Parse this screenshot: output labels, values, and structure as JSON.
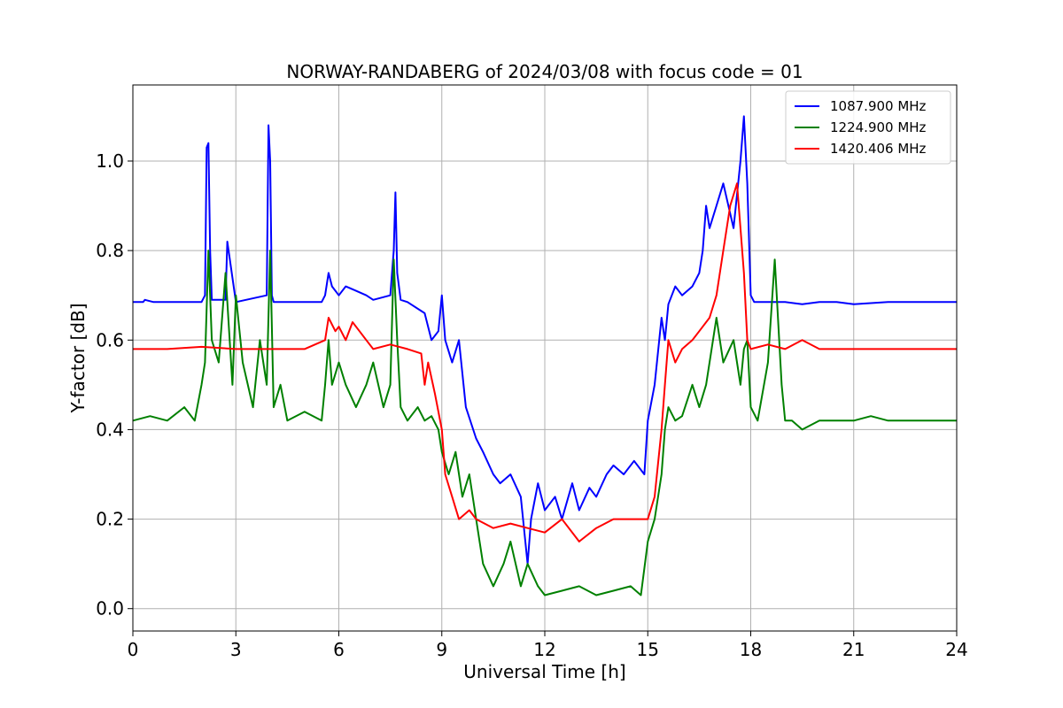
{
  "chart_data": {
    "type": "line",
    "title": "NORWAY-RANDABERG of 2024/03/08 with focus code = 01",
    "xlabel": "Universal Time [h]",
    "ylabel": "Y-factor [dB]",
    "xlim": [
      0,
      24
    ],
    "ylim": [
      -0.05,
      1.17
    ],
    "xticks": [
      0,
      3,
      6,
      9,
      12,
      15,
      18,
      21,
      24
    ],
    "xtick_labels": [
      "0",
      "3",
      "6",
      "9",
      "12",
      "15",
      "18",
      "21",
      "24"
    ],
    "yticks": [
      0.0,
      0.2,
      0.4,
      0.6,
      0.8,
      1.0
    ],
    "ytick_labels": [
      "0.0",
      "0.2",
      "0.4",
      "0.6",
      "0.8",
      "1.0"
    ],
    "grid": true,
    "legend_position": "top-right",
    "series": [
      {
        "name": "1087.900 MHz",
        "color": "#0000ff",
        "x": [
          0,
          0.3,
          0.35,
          0.6,
          1.0,
          2.0,
          2.1,
          2.15,
          2.2,
          2.25,
          2.3,
          2.7,
          2.75,
          3.0,
          3.9,
          3.95,
          4.0,
          4.05,
          4.1,
          5.5,
          5.6,
          5.7,
          5.8,
          6.0,
          6.2,
          6.5,
          6.8,
          7.0,
          7.5,
          7.6,
          7.65,
          7.7,
          7.8,
          8.0,
          8.5,
          8.7,
          8.9,
          9.0,
          9.1,
          9.3,
          9.5,
          9.7,
          10.0,
          10.2,
          10.5,
          10.7,
          11.0,
          11.3,
          11.5,
          11.6,
          11.8,
          12.0,
          12.3,
          12.5,
          12.8,
          13.0,
          13.3,
          13.5,
          13.8,
          14.0,
          14.3,
          14.6,
          14.9,
          15.0,
          15.2,
          15.4,
          15.5,
          15.6,
          15.7,
          15.8,
          16.0,
          16.3,
          16.5,
          16.6,
          16.7,
          16.8,
          17.0,
          17.2,
          17.5,
          17.7,
          17.8,
          17.9,
          18.0,
          18.1,
          18.5,
          19.0,
          19.5,
          20.0,
          20.5,
          21.0,
          22.0,
          23.0,
          24.0
        ],
        "y": [
          0.685,
          0.685,
          0.69,
          0.685,
          0.685,
          0.685,
          0.7,
          1.03,
          1.04,
          0.8,
          0.69,
          0.69,
          0.82,
          0.685,
          0.7,
          1.08,
          1.0,
          0.7,
          0.685,
          0.685,
          0.7,
          0.75,
          0.72,
          0.7,
          0.72,
          0.71,
          0.7,
          0.69,
          0.7,
          0.8,
          0.93,
          0.75,
          0.69,
          0.685,
          0.66,
          0.6,
          0.62,
          0.7,
          0.6,
          0.55,
          0.6,
          0.45,
          0.38,
          0.35,
          0.3,
          0.28,
          0.3,
          0.25,
          0.1,
          0.2,
          0.28,
          0.22,
          0.25,
          0.2,
          0.28,
          0.22,
          0.27,
          0.25,
          0.3,
          0.32,
          0.3,
          0.33,
          0.3,
          0.42,
          0.5,
          0.65,
          0.6,
          0.68,
          0.7,
          0.72,
          0.7,
          0.72,
          0.75,
          0.8,
          0.9,
          0.85,
          0.9,
          0.95,
          0.85,
          1.0,
          1.1,
          0.95,
          0.7,
          0.685,
          0.685,
          0.685,
          0.68,
          0.685,
          0.685,
          0.68,
          0.685,
          0.685,
          0.685
        ]
      },
      {
        "name": "1224.900 MHz",
        "color": "#008000",
        "x": [
          0,
          0.5,
          1.0,
          1.5,
          1.8,
          2.0,
          2.1,
          2.2,
          2.3,
          2.5,
          2.7,
          2.9,
          3.0,
          3.2,
          3.5,
          3.7,
          3.9,
          4.0,
          4.1,
          4.3,
          4.5,
          5.0,
          5.5,
          5.6,
          5.7,
          5.8,
          6.0,
          6.2,
          6.5,
          6.8,
          7.0,
          7.3,
          7.5,
          7.6,
          7.7,
          7.8,
          8.0,
          8.3,
          8.5,
          8.7,
          8.9,
          9.0,
          9.2,
          9.4,
          9.6,
          9.8,
          10.0,
          10.2,
          10.5,
          10.8,
          11.0,
          11.3,
          11.5,
          11.8,
          12.0,
          12.5,
          13.0,
          13.5,
          14.0,
          14.5,
          14.8,
          15.0,
          15.2,
          15.4,
          15.5,
          15.6,
          15.8,
          16.0,
          16.3,
          16.5,
          16.7,
          17.0,
          17.2,
          17.5,
          17.7,
          17.8,
          17.9,
          18.0,
          18.2,
          18.5,
          18.7,
          18.9,
          19.0,
          19.2,
          19.5,
          20.0,
          20.5,
          21.0,
          21.5,
          22.0,
          23.0,
          24.0
        ],
        "y": [
          0.42,
          0.43,
          0.42,
          0.45,
          0.42,
          0.5,
          0.55,
          0.8,
          0.6,
          0.55,
          0.75,
          0.5,
          0.7,
          0.55,
          0.45,
          0.6,
          0.5,
          0.8,
          0.45,
          0.5,
          0.42,
          0.44,
          0.42,
          0.5,
          0.6,
          0.5,
          0.55,
          0.5,
          0.45,
          0.5,
          0.55,
          0.45,
          0.5,
          0.78,
          0.6,
          0.45,
          0.42,
          0.45,
          0.42,
          0.43,
          0.4,
          0.35,
          0.3,
          0.35,
          0.25,
          0.3,
          0.2,
          0.1,
          0.05,
          0.1,
          0.15,
          0.05,
          0.1,
          0.05,
          0.03,
          0.04,
          0.05,
          0.03,
          0.04,
          0.05,
          0.03,
          0.15,
          0.2,
          0.3,
          0.4,
          0.45,
          0.42,
          0.43,
          0.5,
          0.45,
          0.5,
          0.65,
          0.55,
          0.6,
          0.5,
          0.58,
          0.6,
          0.45,
          0.42,
          0.55,
          0.78,
          0.5,
          0.42,
          0.42,
          0.4,
          0.42,
          0.42,
          0.42,
          0.43,
          0.42,
          0.42,
          0.42
        ]
      },
      {
        "name": "1420.406 MHz",
        "color": "#ff0000",
        "x": [
          0,
          1.0,
          2.0,
          3.0,
          4.0,
          5.0,
          5.6,
          5.7,
          5.9,
          6.0,
          6.2,
          6.4,
          6.6,
          6.8,
          7.0,
          7.5,
          8.0,
          8.4,
          8.5,
          8.6,
          8.8,
          9.0,
          9.1,
          9.3,
          9.5,
          9.8,
          10.0,
          10.5,
          11.0,
          11.5,
          12.0,
          12.5,
          13.0,
          13.5,
          14.0,
          14.5,
          15.0,
          15.2,
          15.4,
          15.5,
          15.6,
          15.8,
          16.0,
          16.3,
          16.5,
          16.8,
          17.0,
          17.2,
          17.4,
          17.6,
          17.8,
          17.9,
          18.0,
          18.5,
          19.0,
          19.5,
          20.0,
          21.0,
          22.0,
          23.0,
          24.0
        ],
        "y": [
          0.58,
          0.58,
          0.585,
          0.58,
          0.58,
          0.58,
          0.6,
          0.65,
          0.62,
          0.63,
          0.6,
          0.64,
          0.62,
          0.6,
          0.58,
          0.59,
          0.58,
          0.57,
          0.5,
          0.55,
          0.48,
          0.4,
          0.3,
          0.25,
          0.2,
          0.22,
          0.2,
          0.18,
          0.19,
          0.18,
          0.17,
          0.2,
          0.15,
          0.18,
          0.2,
          0.2,
          0.2,
          0.25,
          0.4,
          0.5,
          0.6,
          0.55,
          0.58,
          0.6,
          0.62,
          0.65,
          0.7,
          0.8,
          0.9,
          0.95,
          0.75,
          0.6,
          0.58,
          0.59,
          0.58,
          0.6,
          0.58,
          0.58,
          0.58,
          0.58,
          0.58
        ]
      }
    ]
  }
}
